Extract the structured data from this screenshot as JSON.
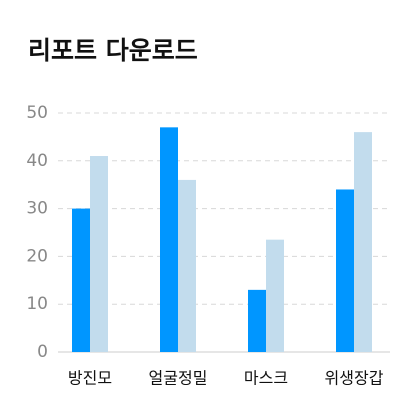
{
  "chart_data": {
    "type": "bar",
    "title": "리포트 다운로드",
    "categories": [
      "방진모",
      "얼굴정밀",
      "마스크",
      "위생장갑"
    ],
    "series": [
      {
        "color": "#0096ff",
        "values": [
          30,
          47,
          13,
          34
        ]
      },
      {
        "color": "#c2dced",
        "values": [
          41,
          36,
          23.5,
          46
        ]
      }
    ],
    "ylim": [
      0,
      50
    ],
    "yticks": [
      0,
      10,
      20,
      30,
      40,
      50
    ],
    "grid": true
  }
}
